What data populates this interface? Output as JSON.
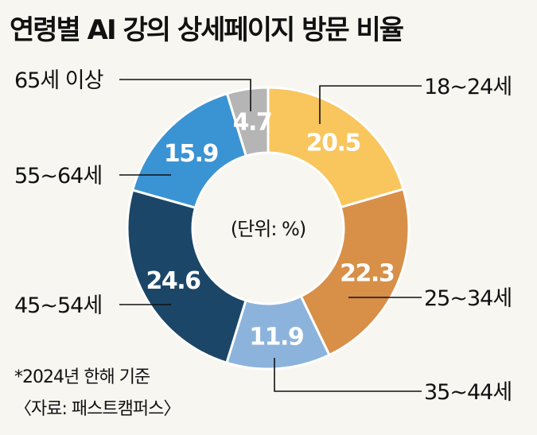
{
  "title": "연령별 AI 강의 상세페이지 방문 비율",
  "chart_data": {
    "type": "pie",
    "title": "연령별 AI 강의 상세페이지 방문 비율",
    "unit_label": "(단위: %)",
    "slices": [
      {
        "label": "18~24세",
        "value": 20.5,
        "color": "#f9c55d"
      },
      {
        "label": "25~34세",
        "value": 22.3,
        "color": "#d88f47"
      },
      {
        "label": "35~44세",
        "value": 11.9,
        "color": "#8cb3dc"
      },
      {
        "label": "45~54세",
        "value": 24.6,
        "color": "#1c4667"
      },
      {
        "label": "55~64세",
        "value": 15.9,
        "color": "#3a93d3"
      },
      {
        "label": "65세 이상",
        "value": 4.7,
        "color": "#b5b5b5"
      }
    ]
  },
  "notes": {
    "basis": "*2024년 한해 기준",
    "source": "〈자료: 패스트캠퍼스〉"
  }
}
